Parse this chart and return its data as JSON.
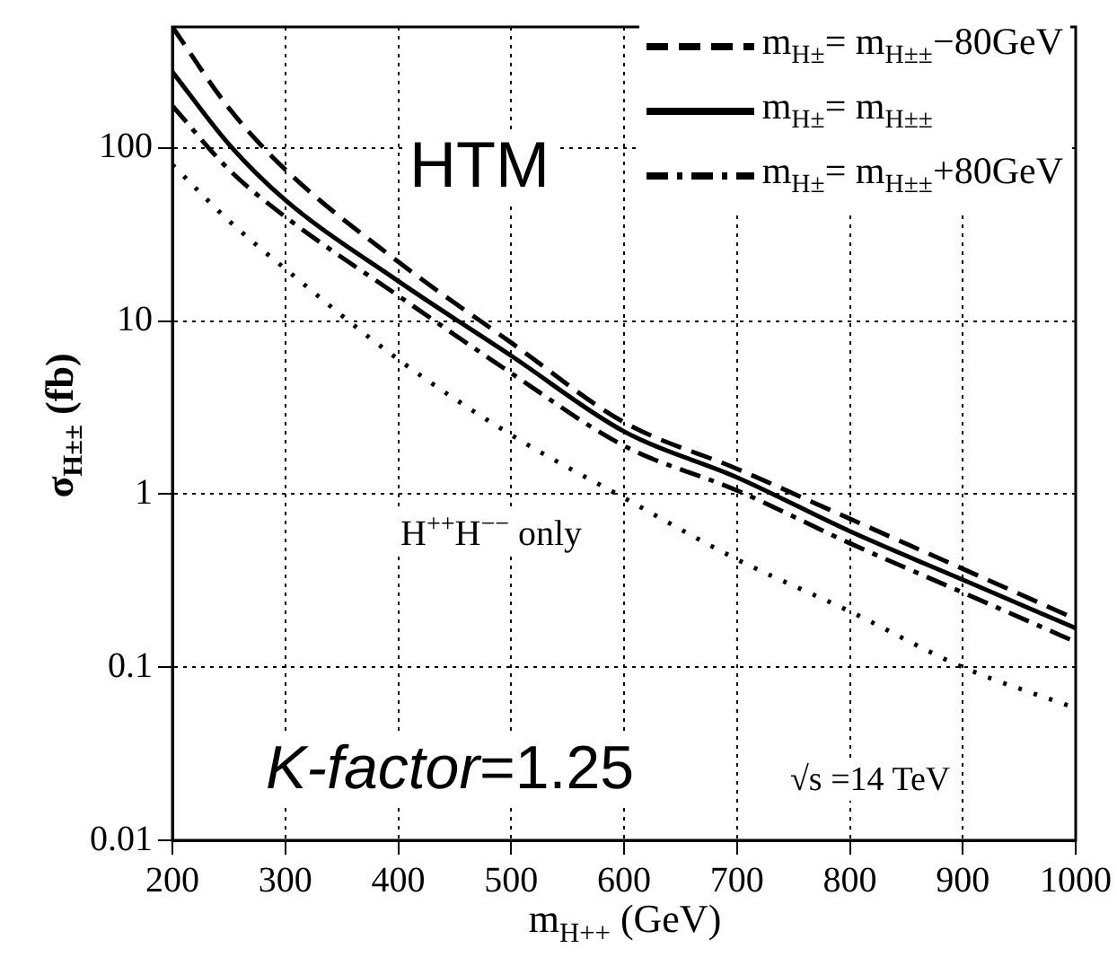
{
  "chart_data": {
    "type": "line",
    "xlabel": "m$_{H++}$ (GeV)",
    "ylabel": "σ$_{H±±}$ (fb)",
    "x": [
      200,
      250,
      300,
      400,
      500,
      600,
      700,
      800,
      900,
      1000
    ],
    "series": [
      {
        "name": "m$_{H±}$= m$_{H±±}$−80GeV",
        "color": "#000000",
        "line_style": "dashed",
        "values": [
          500,
          170,
          75,
          22,
          7.5,
          2.6,
          1.4,
          0.72,
          0.37,
          0.19
        ]
      },
      {
        "name": "m$_{H±}$= m$_{H±±}$",
        "color": "#000000",
        "line_style": "solid",
        "values": [
          275,
          105,
          50,
          17,
          6.3,
          2.3,
          1.25,
          0.61,
          0.32,
          0.168
        ]
      },
      {
        "name": "m$_{H±}$= m$_{H±±}$+80GeV",
        "color": "#000000",
        "line_style": "dashdot",
        "values": [
          175,
          75,
          40,
          14,
          5,
          1.9,
          1.05,
          0.52,
          0.27,
          0.14
        ]
      },
      {
        "color": "#000000",
        "line_style": "dotted",
        "values": [
          80,
          38,
          20,
          6,
          2.2,
          0.95,
          0.42,
          0.21,
          0.1,
          0.058
        ]
      }
    ],
    "xlim": [
      200,
      1000
    ],
    "xticks": [
      200,
      300,
      400,
      500,
      600,
      700,
      800,
      900,
      1000
    ],
    "ylim": [
      0.01,
      500
    ],
    "yticks": [
      0.01,
      0.1,
      1,
      10,
      100
    ],
    "log": "y",
    "grid": true,
    "legend": "top right",
    "marker": "none",
    "annotations": [
      "HTM",
      "H$^{++}$H$^{−−}$ only",
      "K-factor=1.25",
      "√s =14 TeV"
    ]
  }
}
